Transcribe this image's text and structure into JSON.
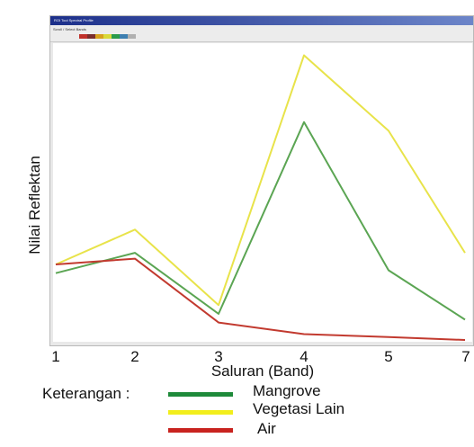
{
  "window": {
    "title": "ROI Tool Spectral Profile",
    "toolbar_text": "Scroll / Select Bands",
    "swatch_colors": [
      "#c0302a",
      "#7a2d2d",
      "#d7a11c",
      "#d9d93a",
      "#2a9a4a",
      "#3d7fb0",
      "#b0b0b0"
    ]
  },
  "chart_data": {
    "type": "line",
    "xlabel": "Saluran (Band)",
    "ylabel": "Nilai Reflektan",
    "categories": [
      "1",
      "2",
      "3",
      "4",
      "5",
      "7"
    ],
    "ylim": [
      0,
      100
    ],
    "grid": false,
    "series": [
      {
        "name": "Mangrove",
        "color": "#5ba553",
        "values": [
          23,
          30,
          9,
          75,
          24,
          7
        ]
      },
      {
        "name": "Vegetasi Lain",
        "color": "#e8e34a",
        "values": [
          26,
          38,
          12,
          98,
          72,
          30
        ]
      },
      {
        "name": "Air",
        "color": "#c23a2f",
        "values": [
          26,
          28,
          6,
          2,
          1,
          0
        ]
      }
    ]
  },
  "legend": {
    "title": "Keterangan :",
    "items": [
      {
        "label": "Mangrove",
        "color": "#1e8a3a"
      },
      {
        "label": "Vegetasi Lain",
        "color": "#f2ee1c"
      },
      {
        "label": "Air",
        "color": "#c8231f"
      }
    ]
  }
}
